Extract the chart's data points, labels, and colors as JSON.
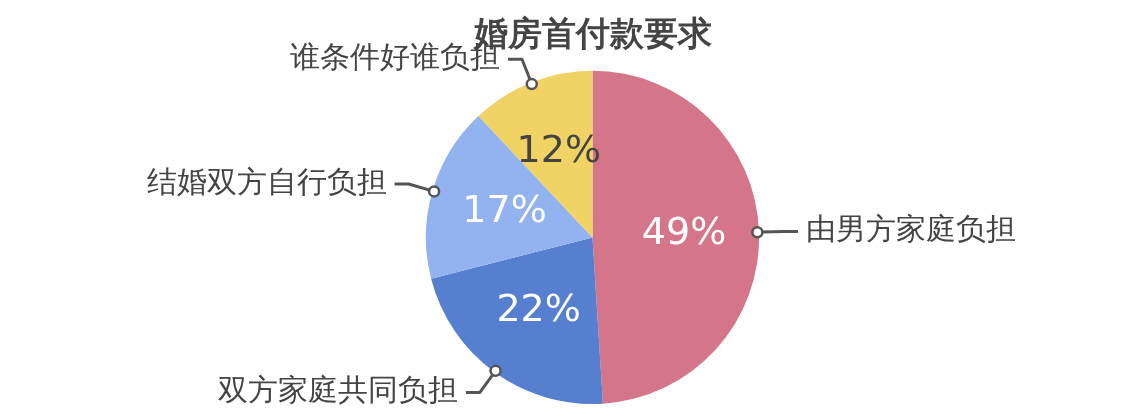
{
  "chart_data": {
    "type": "pie",
    "title": "婚房首付款要求",
    "categories": [
      "由男方家庭负担",
      "双方家庭共同负担",
      "结婚双方自行负担",
      "谁条件好谁负担"
    ],
    "values": [
      49,
      22,
      17,
      12
    ],
    "value_labels": [
      "49%",
      "22%",
      "17%",
      "12%"
    ],
    "colors": [
      "#d5758a",
      "#5680cf",
      "#92b2f0",
      "#f1d264"
    ],
    "legend": false
  }
}
